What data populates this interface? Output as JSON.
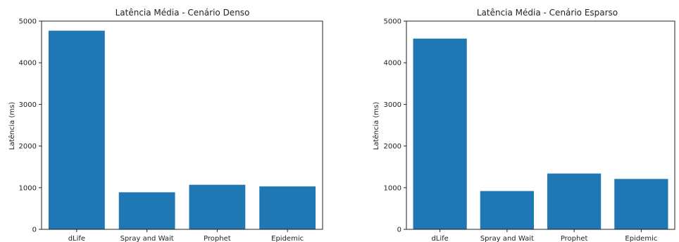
{
  "figure": {
    "bar_color": "#1f77b4",
    "axis_color": "#222222"
  },
  "chart_data": [
    {
      "type": "bar",
      "title": "Latência Média - Cenário Denso",
      "xlabel": "",
      "ylabel": "Latência (ms)",
      "categories": [
        "dLife",
        "Spray and Wait",
        "Prophet",
        "Epidemic"
      ],
      "values": [
        4770,
        890,
        1070,
        1030
      ],
      "ylim": [
        0,
        5000
      ],
      "yticks": [
        0,
        1000,
        2000,
        3000,
        4000,
        5000
      ],
      "grid": false,
      "legend": "none"
    },
    {
      "type": "bar",
      "title": "Latência Média - Cenário Esparso",
      "xlabel": "",
      "ylabel": "Latência (ms)",
      "categories": [
        "dLife",
        "Spray and Wait",
        "Prophet",
        "Epidemic"
      ],
      "values": [
        4580,
        920,
        1340,
        1210
      ],
      "ylim": [
        0,
        5000
      ],
      "yticks": [
        0,
        1000,
        2000,
        3000,
        4000,
        5000
      ],
      "grid": false,
      "legend": "none"
    }
  ]
}
